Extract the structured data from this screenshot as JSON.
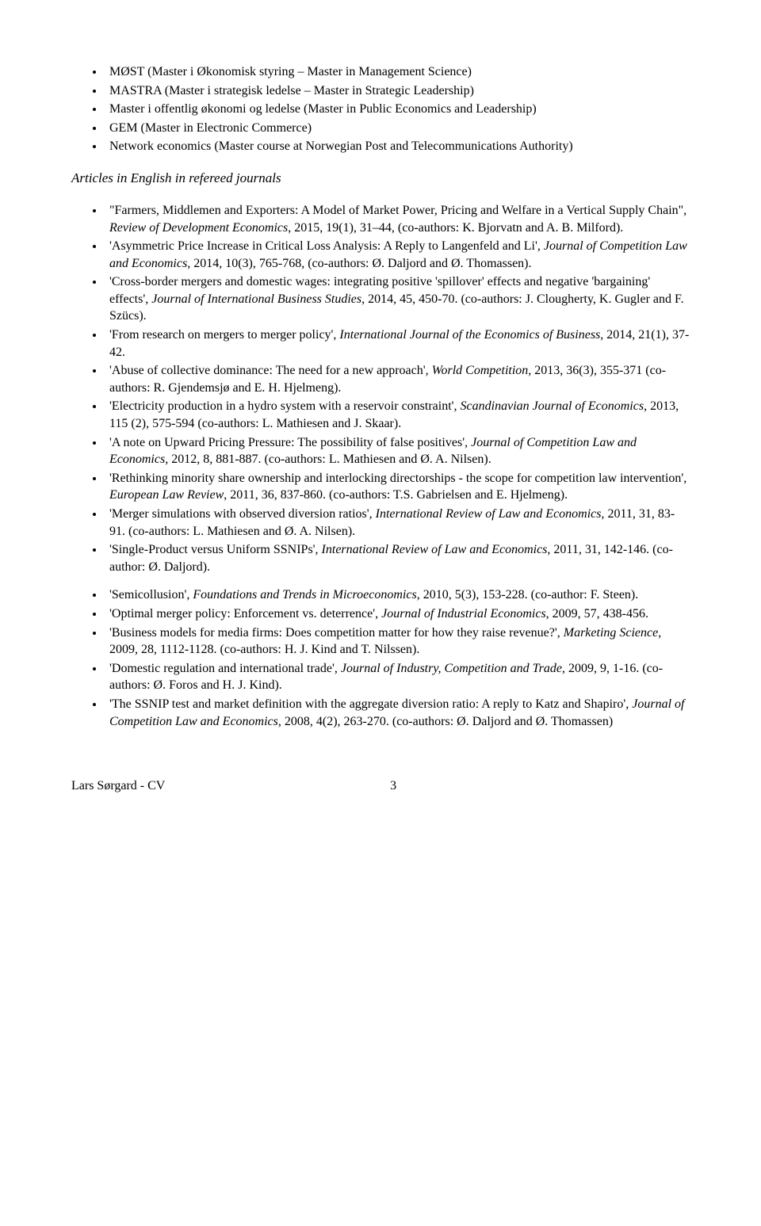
{
  "teaching": {
    "items": [
      "MØST (Master i Økonomisk styring – Master in Management Science)",
      "MASTRA (Master i strategisk ledelse – Master in Strategic Leadership)",
      "Master i offentlig økonomi og ledelse (Master in Public Economics and Leadership)",
      "GEM (Master in Electronic Commerce)",
      "Network economics (Master course at Norwegian Post and Telecommunications Authority)"
    ]
  },
  "articles": {
    "heading": "Articles in English in refereed journals",
    "items": [
      {
        "pre": "\"Farmers, Middlemen and Exporters: A Model of Market Power, Pricing and Welfare in a Vertical Supply Chain\", ",
        "journal": "Review of Development Economics",
        "post": ", 2015, 19(1), 31–44, (co-authors: K. Bjorvatn and A. B. Milford)."
      },
      {
        "pre": "'Asymmetric Price Increase in Critical Loss Analysis: A Reply to Langenfeld and Li', ",
        "journal": "Journal of Competition Law and Economics",
        "post": ", 2014, 10(3), 765-768, (co-authors: Ø. Daljord and Ø. Thomassen)."
      },
      {
        "pre": "'Cross-border mergers and domestic wages: integrating positive 'spillover' effects and negative 'bargaining' effects', ",
        "journal": "Journal of International Business Studies",
        "post": ", 2014, 45, 450-70. (co-authors: J. Clougherty, K. Gugler and F. Szücs)."
      },
      {
        "pre": "'From research on mergers to merger policy', ",
        "journal": "International Journal of the Economics of Business",
        "post": ", 2014, 21(1), 37-42."
      },
      {
        "pre": "'Abuse of collective dominance: The need for a new approach', ",
        "journal": "World Competition",
        "post": ", 2013, 36(3), 355-371 (co-authors: R. Gjendemsjø and E. H. Hjelmeng)."
      },
      {
        "pre": " 'Electricity production in a hydro system with a reservoir constraint', ",
        "journal": "Scandinavian Journal of Economics",
        "post": ", 2013, 115 (2), 575-594 (co-authors: L. Mathiesen and J. Skaar)."
      },
      {
        "pre": "'A note on Upward Pricing Pressure: The possibility of false positives', ",
        "journal": "Journal of Competition Law and Economics",
        "post": ", 2012, 8, 881-887. (co-authors: L. Mathiesen and Ø. A. Nilsen)."
      },
      {
        "pre": "'Rethinking minority share ownership and interlocking directorships - the scope for competition law intervention', ",
        "journal": "European Law Review",
        "post": ", 2011, 36, 837-860. (co-authors: T.S. Gabrielsen and E. Hjelmeng)."
      },
      {
        "pre": "'Merger simulations with observed diversion ratios', ",
        "journal": "International Review of Law and Economics",
        "post": ", 2011, 31, 83-91. (co-authors: L. Mathiesen and Ø. A. Nilsen)."
      },
      {
        "pre": "'Single-Product versus Uniform SSNIPs', ",
        "journal": "International Review of Law and Economics",
        "post": ", 2011, 31, 142-146. (co-author: Ø. Daljord)."
      },
      {
        "pre": "'Semicollusion', ",
        "journal": "Foundations and Trends in Microeconomics",
        "post": ", 2010, 5(3), 153-228. (co-author: F. Steen)."
      },
      {
        "pre": "'Optimal merger policy: Enforcement vs. deterrence', ",
        "journal": "Journal of Industrial Economics",
        "post": ", 2009, 57, 438-456."
      },
      {
        "pre": "'Business models for media firms: Does competition matter for how they raise revenue?', ",
        "journal": "Marketing Science",
        "post": ", 2009, 28, 1112-1128. (co-authors: H. J. Kind and T. Nilssen)."
      },
      {
        "pre": "'Domestic regulation and international trade', ",
        "journal": "Journal of Industry, Competition and Trade",
        "post": ", 2009, 9, 1-16. (co-authors: Ø. Foros and H. J. Kind)."
      },
      {
        "pre": "'The SSNIP test and market definition with the aggregate diversion ratio: A reply to Katz and Shapiro', ",
        "journal": "Journal of Competition Law and Economics,",
        "post": " 2008, 4(2), 263-270. (co-authors: Ø. Daljord and Ø. Thomassen)"
      }
    ]
  },
  "footer": {
    "left": "Lars Sørgard - CV",
    "page": "3"
  }
}
